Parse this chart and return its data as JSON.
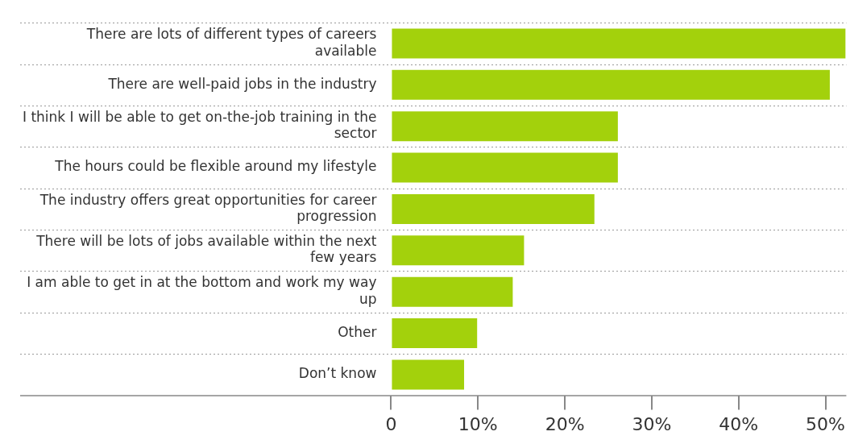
{
  "chart_data": {
    "type": "bar",
    "orientation": "horizontal",
    "categories": [
      "There are lots of different types of careers available",
      "There are well-paid jobs in the industry",
      "I think I will be able to get on-the-job training in the sector",
      "The hours could be flexible around my lifestyle",
      "The industry offers great opportunities for career progression",
      "There will be lots of jobs available within the next few years",
      "I am able to get in at the bottom and work my way up",
      "Other",
      "Don’t know"
    ],
    "values": [
      52.3,
      50.5,
      26.1,
      26.1,
      23.4,
      15.3,
      14.0,
      9.9,
      8.4
    ],
    "color": "#a3d10c",
    "xlim": [
      0,
      52.4
    ],
    "xticks": [
      0,
      {
        "value": 10,
        "label": "10%"
      },
      {
        "value": 20,
        "label": "20%"
      },
      {
        "value": 30,
        "label": "30%"
      },
      {
        "value": 40,
        "label": "40%"
      },
      {
        "value": 50,
        "label": "50%"
      }
    ],
    "grid": "y",
    "legend": false
  }
}
